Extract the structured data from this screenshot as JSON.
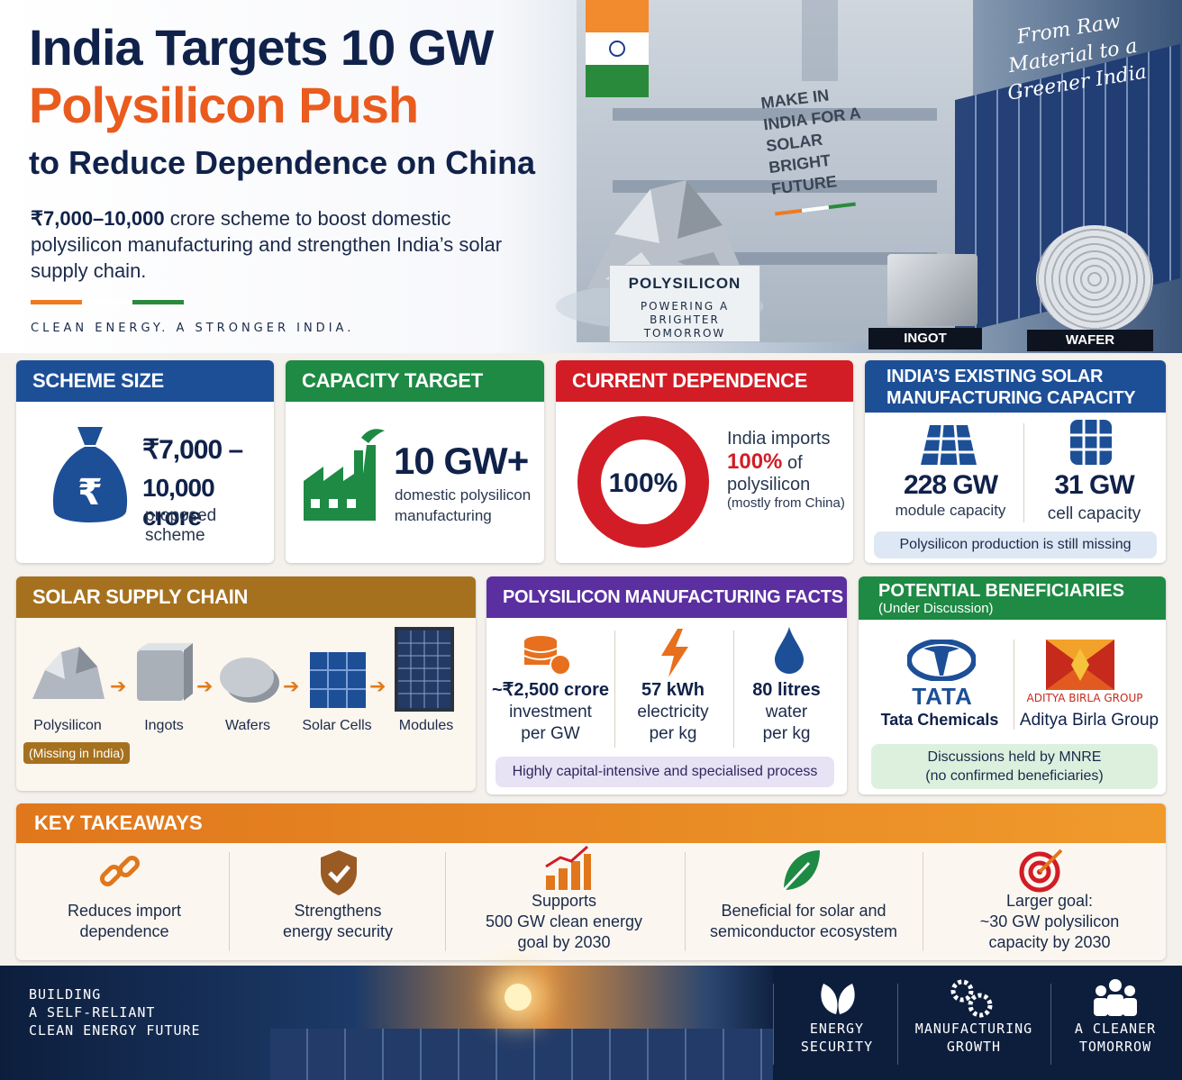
{
  "hero": {
    "title_line1": "India Targets 10 GW",
    "title_line2": "Polysilicon Push",
    "title_line3": "to Reduce Dependence on China",
    "subtitle_amount": "₹7,000–10,000",
    "subtitle_rest": " crore scheme to boost domestic polysilicon manufacturing and strengthen India’s solar supply chain.",
    "tagline": "CLEAN ENERGY. A STRONGER INDIA.",
    "script_text": "From Raw Material to a Greener India",
    "wall_sign": "MAKE IN INDIA FOR A SOLAR BRIGHT FUTURE",
    "poly_card_title": "POLYSILICON",
    "poly_card_sub": "POWERING A BRIGHTER TOMORROW",
    "ingot_label": "INGOT",
    "wafer_label": "WAFER"
  },
  "scheme": {
    "header": "SCHEME SIZE",
    "amount": "₹7,000 –",
    "amount2": "10,000 crore",
    "desc": "proposed scheme"
  },
  "capacity": {
    "header": "CAPACITY TARGET",
    "value": "10 GW+",
    "desc": "domestic polysilicon manufacturing"
  },
  "dependence": {
    "header": "CURRENT DEPENDENCE",
    "pct": "100%",
    "t1": "India imports",
    "t2": "100%",
    "t3": " of",
    "t4": "polysilicon",
    "t5": "(mostly from China)",
    "import_fraction": 1.0
  },
  "existing": {
    "header": "INDIA’S EXISTING SOLAR MANUFACTURING CAPACITY",
    "module_value": "228 GW",
    "module_label": "module capacity",
    "cell_value": "31 GW",
    "cell_label": "cell capacity",
    "note": "Polysilicon production is still missing"
  },
  "chain": {
    "header": "SOLAR SUPPLY CHAIN",
    "steps": [
      "Polysilicon",
      "Ingots",
      "Wafers",
      "Solar Cells",
      "Modules"
    ],
    "missing": "(Missing in India)"
  },
  "facts": {
    "header": "POLYSILICON MANUFACTURING FACTS",
    "items": [
      {
        "value": "~₹2,500 crore",
        "l1": "investment",
        "l2": "per GW"
      },
      {
        "value": "57 kWh",
        "l1": "electricity",
        "l2": "per kg"
      },
      {
        "value": "80 litres",
        "l1": "water",
        "l2": "per kg"
      }
    ],
    "note": "Highly capital-intensive and specialised process"
  },
  "beneficiaries": {
    "header": "POTENTIAL BENEFICIARIES",
    "subheader": "(Under Discussion)",
    "tata_logo": "TATA",
    "tata_name": "Tata Chemicals",
    "ab_logo": "ADITYA BIRLA GROUP",
    "ab_name": "Aditya Birla Group",
    "note1": "Discussions held by MNRE",
    "note2": "(no confirmed beneficiaries)"
  },
  "takeaways": {
    "header": "KEY TAKEAWAYS",
    "items": [
      {
        "l1": "Reduces import",
        "l2": "dependence",
        "l3": ""
      },
      {
        "l1": "Strengthens",
        "l2": "energy security",
        "l3": ""
      },
      {
        "l1": "Supports",
        "l2": "500 GW clean energy",
        "l3": "goal by 2030"
      },
      {
        "l1": "Beneficial for solar and",
        "l2": "semiconductor ecosystem",
        "l3": ""
      },
      {
        "l1": "Larger goal:",
        "l2": "~30 GW polysilicon",
        "l3": "capacity by 2030"
      }
    ]
  },
  "footer": {
    "left": [
      "BUILDING",
      "A SELF-RELIANT",
      "CLEAN ENERGY FUTURE"
    ],
    "items": [
      {
        "l1": "ENERGY",
        "l2": "SECURITY"
      },
      {
        "l1": "MANUFACTURING",
        "l2": "GROWTH"
      },
      {
        "l1": "A CLEANER",
        "l2": "TOMORROW"
      }
    ]
  },
  "colors": {
    "navy": "#10224a",
    "saffron": "#ea5b1e",
    "green": "#1e8a44",
    "red": "#d21d26",
    "purple": "#5b2fa0",
    "gold": "#a6711f",
    "blue": "#1d4f97"
  }
}
